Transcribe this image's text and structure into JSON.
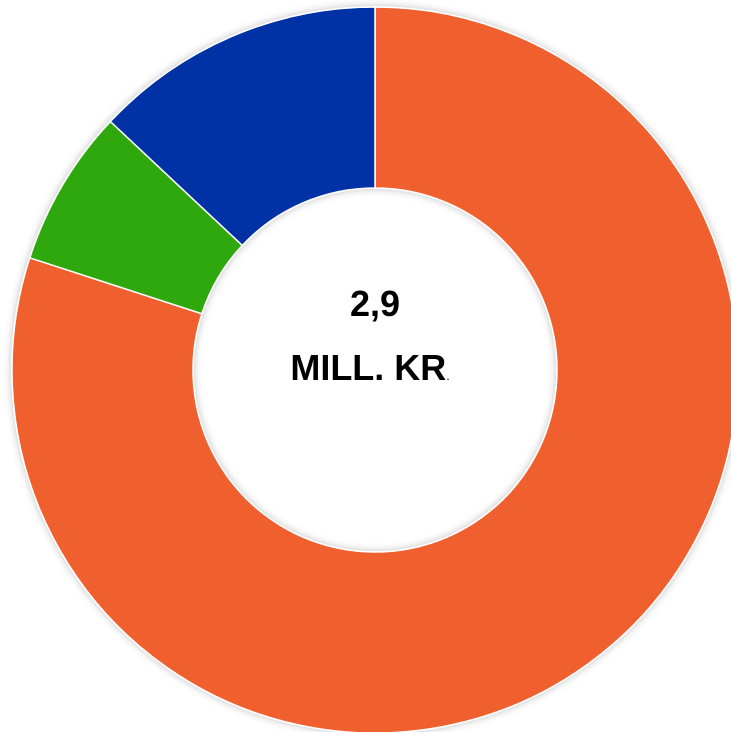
{
  "chart_data": {
    "type": "donut",
    "center_text": [
      "2,9",
      "MILL. KR",
      "."
    ],
    "categories": [
      null,
      null,
      null
    ],
    "values": [
      80,
      7,
      13
    ],
    "colors": [
      "#f05f2e",
      "#2ea80a",
      "#0033a6"
    ]
  }
}
